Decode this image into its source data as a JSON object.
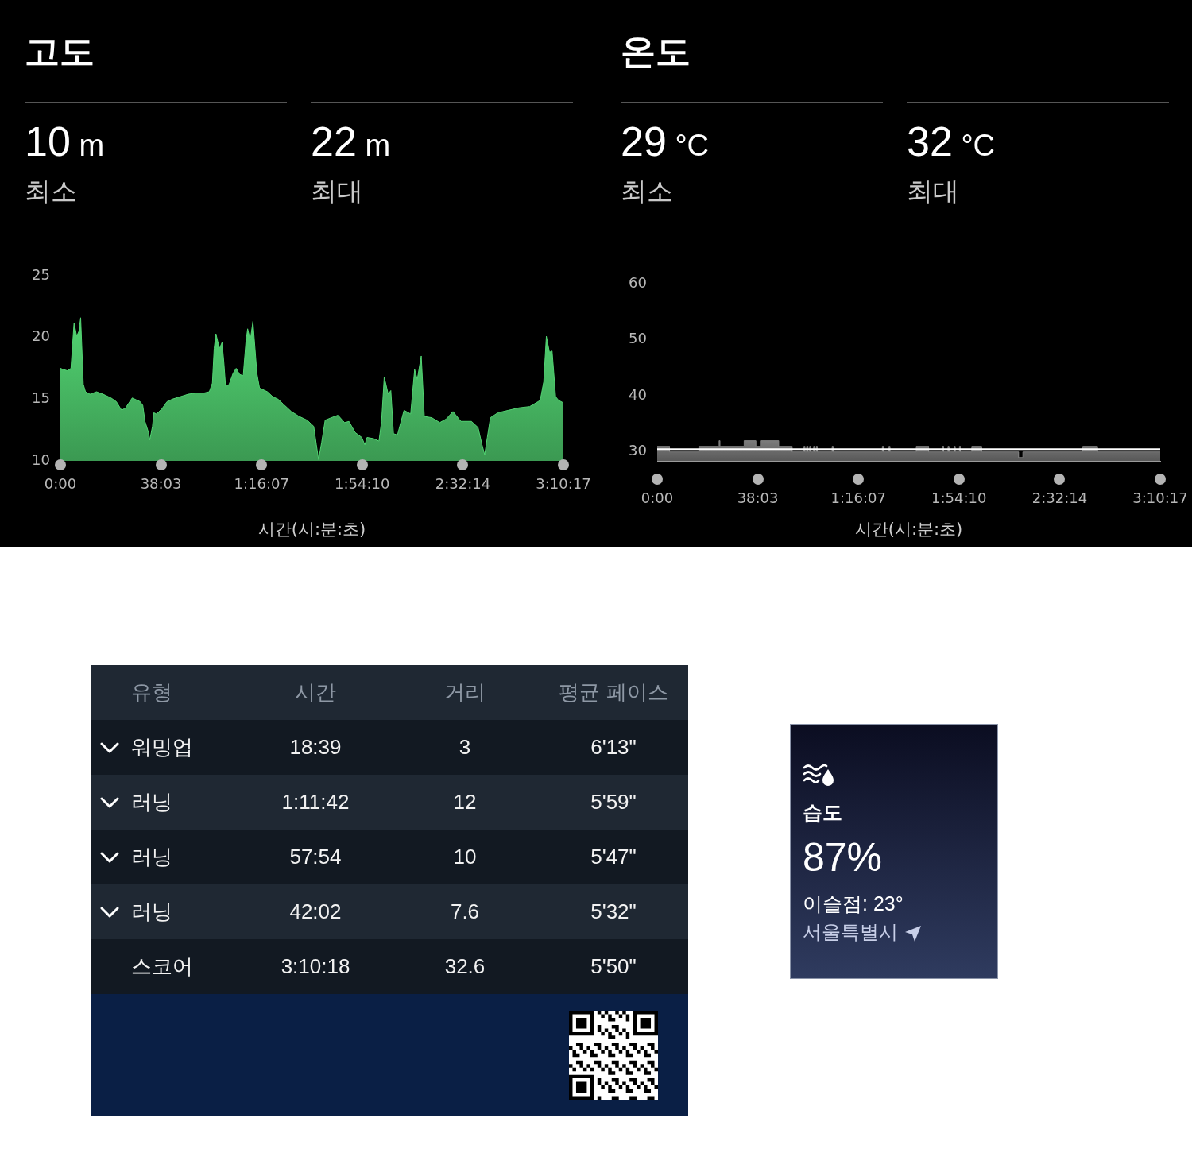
{
  "chart_data": [
    {
      "type": "area",
      "title": "고도",
      "annotations": [
        "10 m",
        "최소",
        "22 m",
        "최대"
      ],
      "xlabel": "시간(시:분:초)",
      "color": "#52d472",
      "x": [
        0,
        70,
        160,
        240,
        310,
        370,
        420,
        460,
        520,
        570,
        670,
        820,
        970,
        1150,
        1270,
        1390,
        1480,
        1630,
        1810,
        1870,
        1920,
        2000,
        2030,
        2090,
        2120,
        2180,
        2300,
        2420,
        2540,
        2720,
        2900,
        3080,
        3260,
        3380,
        3450,
        3490,
        3530,
        3610,
        3670,
        3710,
        3750,
        3830,
        3920,
        3990,
        4070,
        4150,
        4210,
        4250,
        4310,
        4370,
        4460,
        4520,
        4700,
        4820,
        4940,
        5090,
        5240,
        5420,
        5600,
        5750,
        5810,
        5860,
        5930,
        6010,
        6150,
        6300,
        6450,
        6550,
        6690,
        6840,
        6910,
        6960,
        7110,
        7230,
        7290,
        7350,
        7440,
        7500,
        7560,
        7650,
        7800,
        7950,
        8040,
        8100,
        8190,
        8260,
        8430,
        8610,
        8760,
        8910,
        9090,
        9330,
        9480,
        9570,
        9630,
        9690,
        9760,
        9930,
        10170,
        10410,
        10650,
        10890,
        10970,
        11030,
        11100,
        11160,
        11240,
        11310,
        11417
      ],
      "values": [
        17.5,
        17.4,
        17.3,
        17.5,
        21.2,
        20.1,
        20.5,
        21.6,
        16.2,
        15.6,
        15.4,
        15.6,
        15.4,
        15.1,
        14.8,
        14.1,
        14.3,
        15.1,
        14.8,
        14.5,
        13.2,
        12.3,
        11.7,
        12.8,
        13.9,
        13.8,
        14.2,
        14.8,
        15.0,
        15.2,
        15.4,
        15.5,
        15.5,
        15.6,
        16.3,
        19.1,
        20.3,
        19.1,
        19.6,
        18.0,
        16.0,
        16.2,
        17.1,
        17.5,
        17.0,
        16.9,
        19.6,
        20.7,
        19.8,
        21.3,
        17.1,
        15.9,
        15.6,
        15.2,
        15.0,
        14.5,
        14.0,
        13.6,
        13.3,
        12.8,
        11.3,
        10.1,
        11.5,
        13.3,
        13.5,
        13.7,
        13.1,
        13.2,
        12.3,
        11.9,
        11.3,
        11.9,
        11.8,
        11.6,
        13.2,
        16.8,
        15.4,
        15.7,
        12.2,
        12.1,
        14.1,
        13.8,
        17.4,
        16.6,
        18.5,
        13.6,
        13.5,
        13.1,
        13.4,
        14.0,
        13.2,
        13.2,
        12.7,
        11.3,
        10.5,
        11.9,
        13.5,
        13.9,
        14.1,
        14.3,
        14.4,
        14.9,
        16.4,
        20.1,
        18.8,
        18.9,
        15.2,
        14.9,
        14.7
      ],
      "xlim": [
        0,
        11417
      ],
      "xticks": [
        {
          "value": 0,
          "label": "0:00"
        },
        {
          "value": 2283,
          "label": "38:03"
        },
        {
          "value": 4567,
          "label": "1:16:07"
        },
        {
          "value": 6850,
          "label": "1:54:10"
        },
        {
          "value": 9134,
          "label": "2:32:14"
        },
        {
          "value": 11417,
          "label": "3:10:17"
        }
      ],
      "ylim": [
        10,
        25
      ],
      "yticks": [
        10,
        15,
        20,
        25
      ]
    },
    {
      "type": "area",
      "title": "온도",
      "annotations": [
        "29 °C",
        "최소",
        "32 °C",
        "최대"
      ],
      "xlabel": "시간(시:분:초)",
      "color": "#7c7c7c",
      "x": [
        0,
        280,
        280,
        945,
        945,
        1405,
        1405,
        1420,
        1420,
        1973,
        1973,
        2236,
        2236,
        2359,
        2359,
        2754,
        2754,
        3060,
        3060,
        3330,
        3330,
        3350,
        3350,
        3390,
        3390,
        3420,
        3420,
        3460,
        3460,
        3480,
        3480,
        3550,
        3550,
        3570,
        3570,
        3610,
        3610,
        3630,
        3630,
        3970,
        3970,
        3990,
        3990,
        5110,
        5110,
        5130,
        5130,
        5260,
        5260,
        5280,
        5280,
        5880,
        5880,
        6160,
        6160,
        6470,
        6470,
        6500,
        6500,
        6600,
        6600,
        6620,
        6620,
        6740,
        6740,
        6760,
        6760,
        6860,
        6860,
        6880,
        6880,
        7140,
        7140,
        7360,
        7360,
        8200,
        8200,
        8300,
        8300,
        9660,
        9660,
        9990,
        9990,
        11417
      ],
      "values": [
        31,
        31,
        30,
        30,
        31,
        31,
        32,
        32,
        31,
        31,
        32,
        32,
        31,
        31,
        32,
        32,
        31,
        31,
        30,
        30,
        31,
        31,
        30,
        30,
        31,
        31,
        30,
        30,
        31,
        31,
        30,
        30,
        31,
        31,
        30,
        30,
        31,
        31,
        30,
        30,
        31,
        31,
        30,
        30,
        31,
        31,
        30,
        30,
        31,
        31,
        30,
        30,
        31,
        31,
        30,
        30,
        31,
        31,
        30,
        30,
        31,
        31,
        30,
        30,
        31,
        31,
        30,
        30,
        31,
        31,
        30,
        30,
        31,
        31,
        30,
        30,
        29,
        29,
        30,
        30,
        31,
        31,
        30,
        30
      ],
      "xlim": [
        0,
        11417
      ],
      "xticks": [
        {
          "value": 0,
          "label": "0:00"
        },
        {
          "value": 2283,
          "label": "38:03"
        },
        {
          "value": 4567,
          "label": "1:16:07"
        },
        {
          "value": 6850,
          "label": "1:54:10"
        },
        {
          "value": 9134,
          "label": "2:32:14"
        },
        {
          "value": 11417,
          "label": "3:10:17"
        }
      ],
      "ylim": [
        28.4,
        60
      ],
      "yticks": [
        30,
        40,
        50,
        60
      ],
      "ref_lines": [
        {
          "axis": "y",
          "value": 30.5,
          "color": "#ffffff"
        }
      ]
    },
    {
      "type": "other",
      "annotations": [
        "유형",
        "시간",
        "거리",
        "평균 페이스",
        "워밍업",
        "18:39",
        "3",
        "6'13\"",
        "러닝",
        "1:11:42",
        "12",
        "5'59\"",
        "러닝",
        "57:54",
        "10",
        "5'47\"",
        "러닝",
        "42:02",
        "7.6",
        "5'32\"",
        "스코어",
        "3:10:18",
        "32.6",
        "5'50\""
      ]
    },
    {
      "type": "other",
      "title": "습도",
      "annotations": [
        "87%",
        "이슬점: 23°",
        "서울특별시"
      ]
    }
  ]
}
